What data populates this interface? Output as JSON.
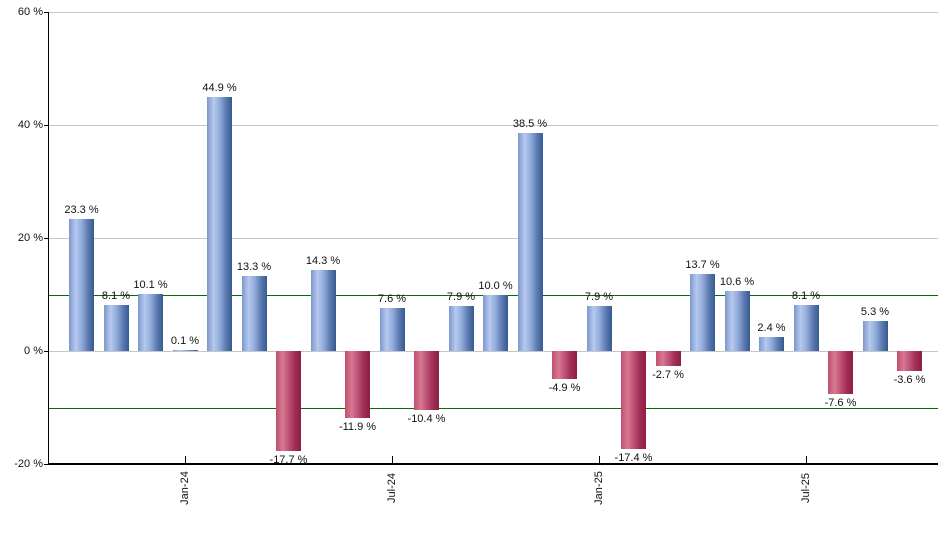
{
  "chart_data": {
    "type": "bar",
    "title": "",
    "xlabel": "",
    "ylabel": "",
    "values": [
      23.3,
      8.1,
      10.1,
      0.1,
      44.9,
      13.3,
      -17.7,
      14.3,
      -11.9,
      7.6,
      -10.4,
      7.9,
      10.0,
      38.5,
      -4.9,
      7.9,
      -17.4,
      -2.7,
      13.7,
      10.6,
      2.4,
      8.1,
      -7.6,
      5.3,
      -3.6
    ],
    "value_labels": [
      "23.3 %",
      "8.1 %",
      "10.1 %",
      "0.1 %",
      "44.9 %",
      "13.3 %",
      "-17.7 %",
      "14.3 %",
      "-11.9 %",
      "7.6 %",
      "-10.4 %",
      "7.9 %",
      "10.0 %",
      "38.5 %",
      "-4.9 %",
      "7.9 %",
      "-17.4 %",
      "-2.7 %",
      "13.7 %",
      "10.6 %",
      "2.4 %",
      "8.1 %",
      "-7.6 %",
      "5.3 %",
      "-3.6 %"
    ],
    "y_axis": {
      "range": [
        -20,
        60
      ],
      "ticks": [
        {
          "value": 60,
          "label": "60 %"
        },
        {
          "value": 40,
          "label": "40 %"
        },
        {
          "value": 20,
          "label": "20 %"
        },
        {
          "value": 0,
          "label": "0 %"
        },
        {
          "value": -20,
          "label": "-20 %"
        }
      ]
    },
    "x_axis": {
      "ticks": [
        {
          "bar_index": 3,
          "label": "Jan-24"
        },
        {
          "bar_index": 9,
          "label": "Jul-24"
        },
        {
          "bar_index": 15,
          "label": "Jan-25"
        },
        {
          "bar_index": 21,
          "label": "Jul-25"
        }
      ]
    },
    "gridlines": [
      60,
      40,
      20,
      0
    ],
    "reference_lines": [
      {
        "value": 10,
        "color": "#007000"
      },
      {
        "value": -10,
        "color": "#007000"
      }
    ],
    "legend": null,
    "colors": {
      "gridline": "#c6c6c6",
      "axis": "#000000",
      "label_text": "#111111",
      "positive_gradient": [
        "#7d97cc",
        "#b6c9ef",
        "#93acdc",
        "#5e7cb2",
        "#345a92"
      ],
      "negative_gradient": [
        "#c14f70",
        "#d67990",
        "#bf5377",
        "#a22e54",
        "#8c1e44"
      ]
    }
  }
}
